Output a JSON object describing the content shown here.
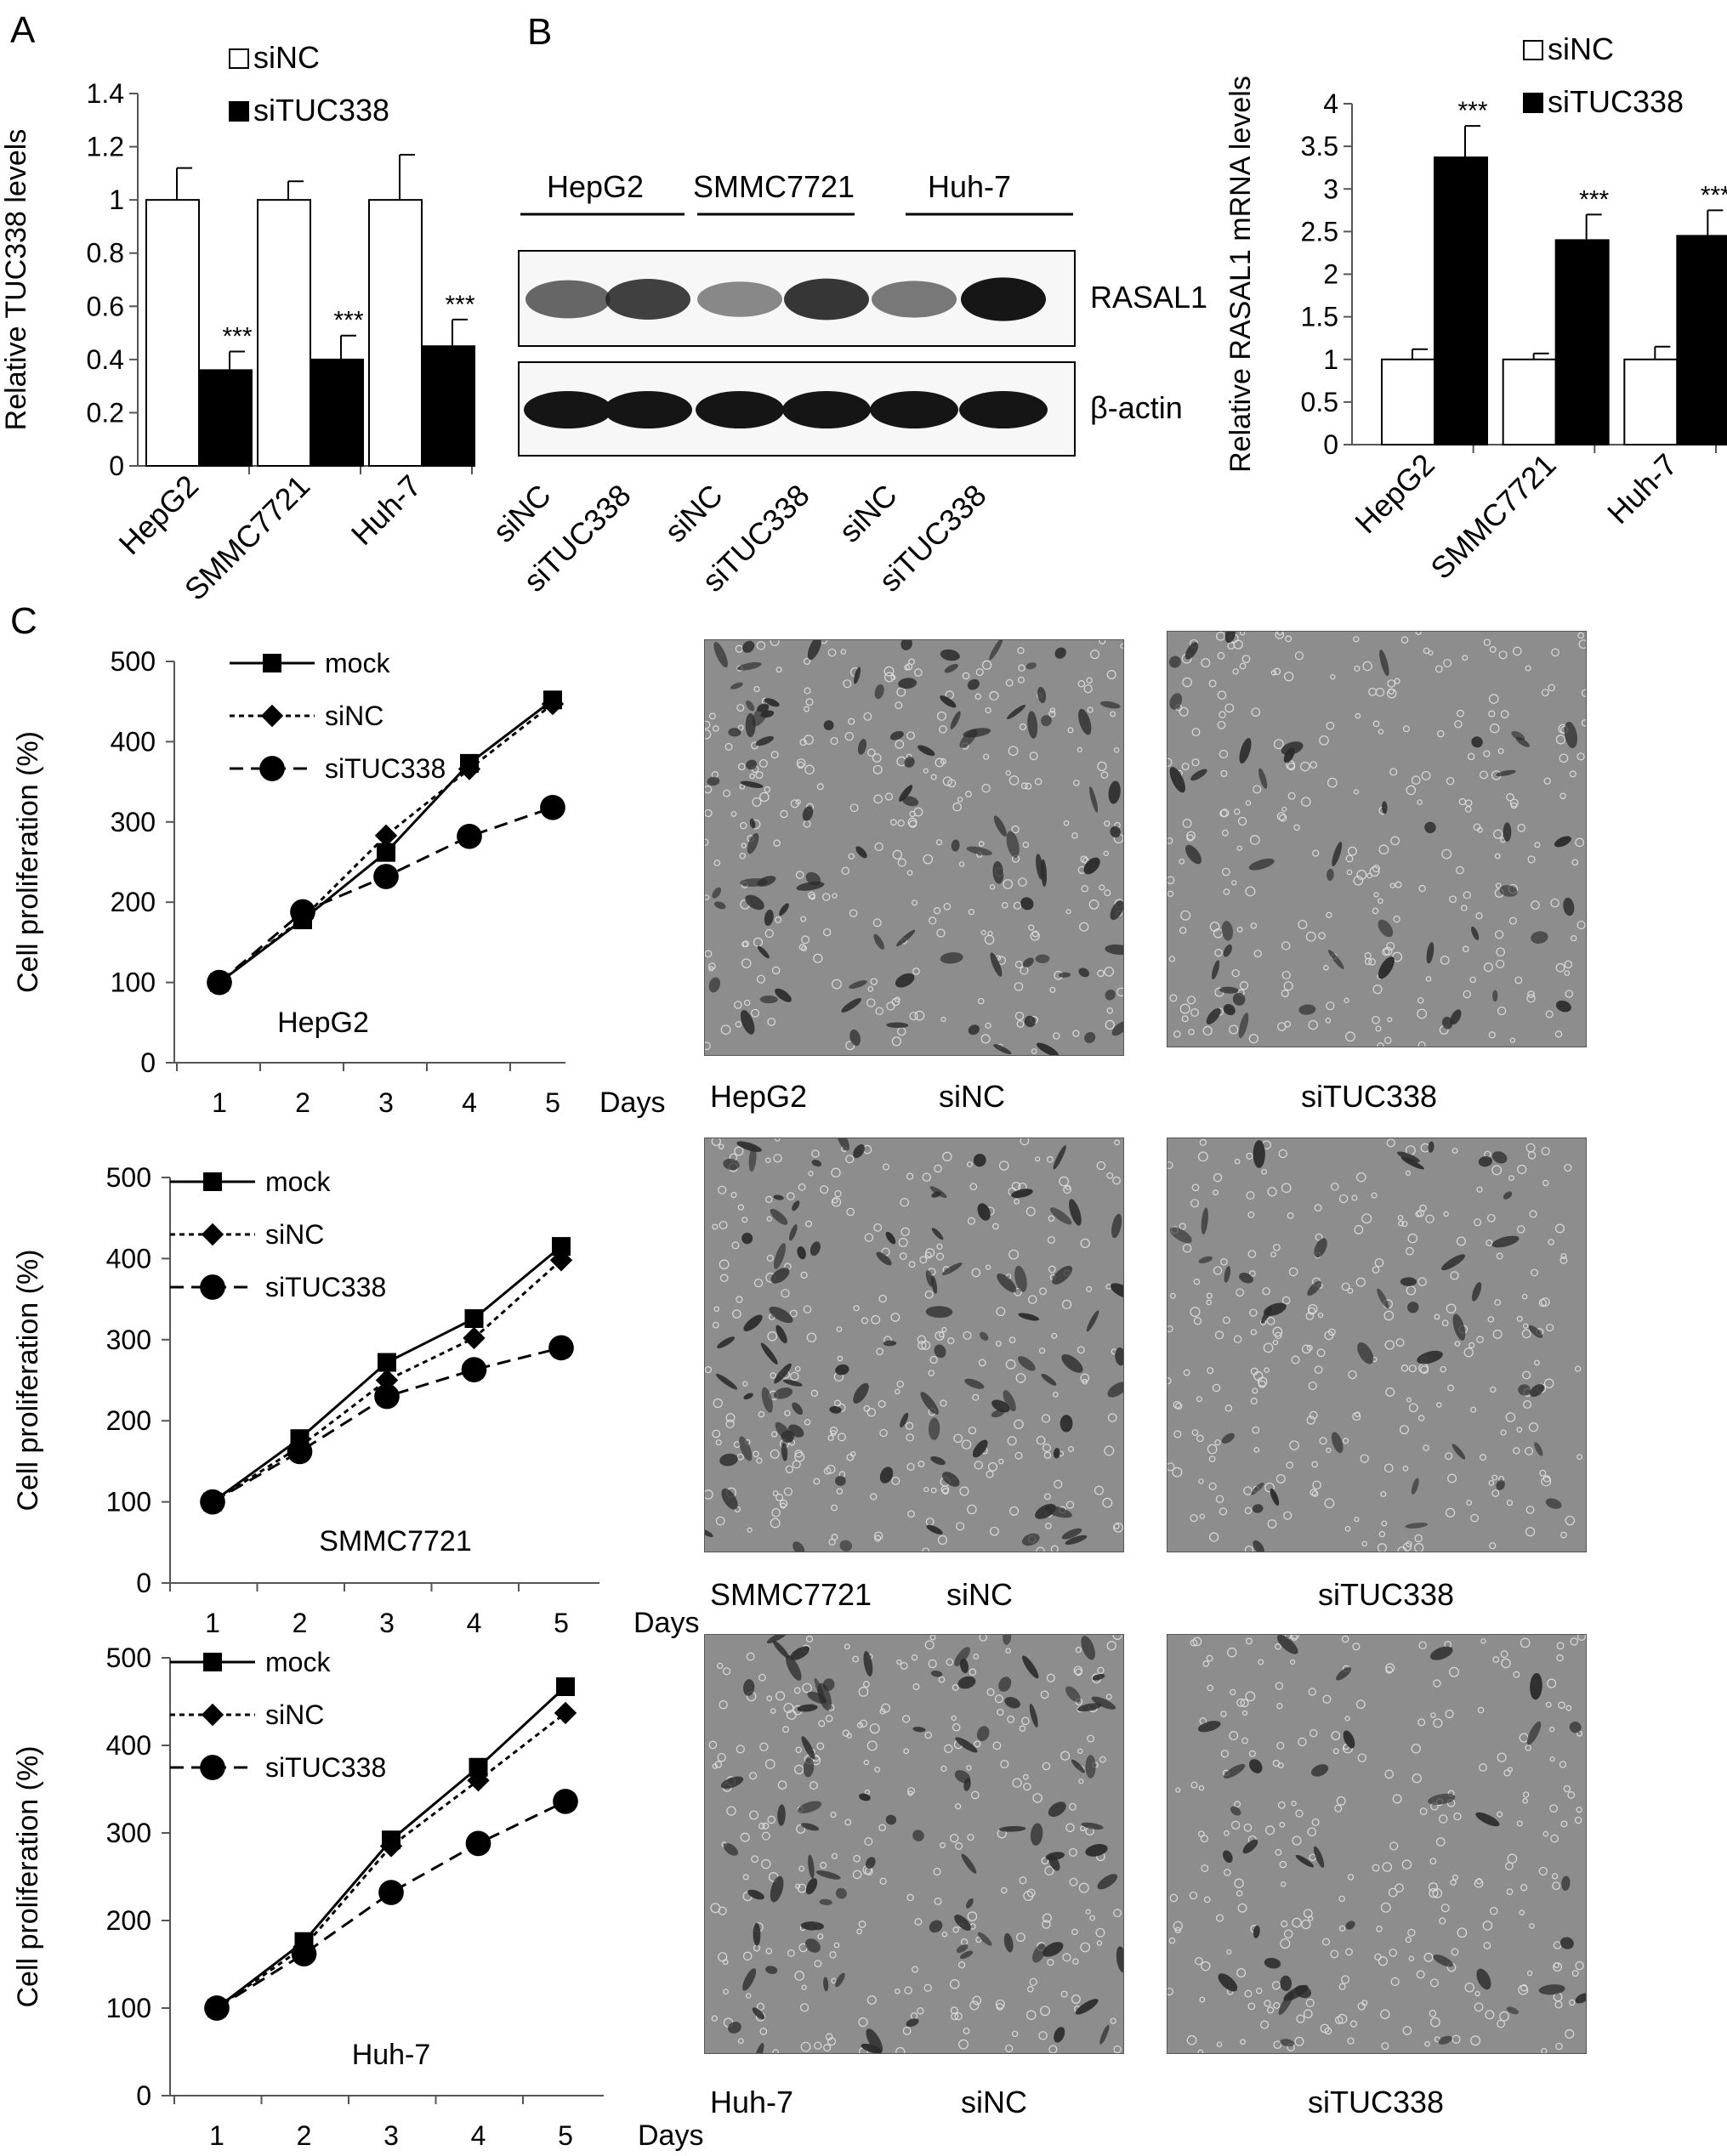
{
  "panel_labels": {
    "a": "A",
    "b": "B",
    "c": "C"
  },
  "blot": {
    "groups": [
      "HepG2",
      "SMMC7721",
      "Huh-7"
    ],
    "bands": [
      "RASAL1",
      "β-actin"
    ],
    "lanes": [
      "siNC",
      "siTUC338",
      "siNC",
      "siTUC338",
      "siNC",
      "siTUC338"
    ],
    "intensity_rasal1": [
      0.55,
      0.75,
      0.35,
      0.8,
      0.45,
      0.95
    ]
  },
  "micro_labels": {
    "row1": {
      "cell": "HepG2",
      "left": "siNC",
      "right": "siTUC338"
    },
    "row2": {
      "cell": "SMMC7721",
      "left": "siNC",
      "right": "siTUC338"
    },
    "row3": {
      "cell": "Huh-7",
      "left": "siNC",
      "right": "siTUC338"
    }
  },
  "chart_data": [
    {
      "id": "A",
      "type": "bar",
      "categories": [
        "HepG2",
        "SMMC7721",
        "Huh-7"
      ],
      "ylabel": "Relative TUC338 levels",
      "ylim": [
        0,
        1.4
      ],
      "yticks": [
        "0",
        "0.2",
        "0.4",
        "0.6",
        "0.8",
        "1",
        "1.2",
        "1.4"
      ],
      "series": [
        {
          "name": "siNC",
          "values": [
            1.0,
            1.0,
            1.0
          ],
          "errors": [
            0.12,
            0.07,
            0.17
          ],
          "color": "#ffffff"
        },
        {
          "name": "siTUC338",
          "values": [
            0.36,
            0.4,
            0.45
          ],
          "errors": [
            0.07,
            0.09,
            0.1
          ],
          "color": "#000000"
        }
      ],
      "annotations": [
        "***",
        "***",
        "***"
      ],
      "legend": "top-right"
    },
    {
      "id": "B",
      "type": "bar",
      "categories": [
        "HepG2",
        "SMMC7721",
        "Huh-7"
      ],
      "ylabel": "Relative RASAL1 mRNA levels",
      "ylim": [
        0,
        4
      ],
      "yticks": [
        "0",
        "0.5",
        "1",
        "1.5",
        "2",
        "2.5",
        "3",
        "3.5",
        "4"
      ],
      "series": [
        {
          "name": "siNC",
          "values": [
            1.0,
            1.0,
            1.0
          ],
          "errors": [
            0.12,
            0.07,
            0.15
          ],
          "color": "#ffffff"
        },
        {
          "name": "siTUC338",
          "values": [
            3.37,
            2.4,
            2.45
          ],
          "errors": [
            0.37,
            0.3,
            0.3
          ],
          "color": "#000000"
        }
      ],
      "annotations": [
        "***",
        "***",
        "***"
      ],
      "legend": "top"
    },
    {
      "id": "C1",
      "type": "line",
      "x": [
        1,
        2,
        3,
        4,
        5
      ],
      "xlabel": "Days",
      "ylabel": "Cell proliferation (%)",
      "ylim": [
        0,
        500
      ],
      "yticks": [
        "0",
        "100",
        "200",
        "300",
        "400",
        "500"
      ],
      "annotation": "HepG2",
      "series": [
        {
          "name": "mock",
          "values": [
            100,
            178,
            262,
            373,
            452
          ],
          "marker": "square",
          "dash": "solid"
        },
        {
          "name": "siNC",
          "values": [
            100,
            180,
            283,
            366,
            447
          ],
          "marker": "diamond",
          "dash": "short"
        },
        {
          "name": "siTUC338",
          "values": [
            100,
            188,
            232,
            282,
            318
          ],
          "marker": "circle",
          "dash": "long"
        }
      ],
      "legend": "top-left"
    },
    {
      "id": "C2",
      "type": "line",
      "x": [
        1,
        2,
        3,
        4,
        5
      ],
      "xlabel": "Days",
      "ylabel": "Cell proliferation (%)",
      "ylim": [
        0,
        500
      ],
      "yticks": [
        "0",
        "100",
        "200",
        "300",
        "400",
        "500"
      ],
      "annotation": "SMMC7721",
      "series": [
        {
          "name": "mock",
          "values": [
            100,
            178,
            272,
            326,
            415
          ],
          "marker": "square",
          "dash": "solid"
        },
        {
          "name": "siNC",
          "values": [
            100,
            168,
            250,
            302,
            398
          ],
          "marker": "diamond",
          "dash": "short"
        },
        {
          "name": "siTUC338",
          "values": [
            100,
            162,
            230,
            263,
            290
          ],
          "marker": "circle",
          "dash": "long"
        }
      ],
      "legend": "top-left"
    },
    {
      "id": "C3",
      "type": "line",
      "x": [
        1,
        2,
        3,
        4,
        5
      ],
      "xlabel": "Days",
      "ylabel": "Cell proliferation (%)",
      "ylim": [
        0,
        500
      ],
      "yticks": [
        "0",
        "100",
        "200",
        "300",
        "400",
        "500"
      ],
      "annotation": "Huh-7",
      "series": [
        {
          "name": "mock",
          "values": [
            100,
            176,
            292,
            375,
            467
          ],
          "marker": "square",
          "dash": "solid"
        },
        {
          "name": "siNC",
          "values": [
            100,
            170,
            285,
            360,
            437
          ],
          "marker": "diamond",
          "dash": "short"
        },
        {
          "name": "siTUC338",
          "values": [
            100,
            162,
            232,
            288,
            336
          ],
          "marker": "circle",
          "dash": "long"
        }
      ],
      "legend": "top-left"
    }
  ]
}
